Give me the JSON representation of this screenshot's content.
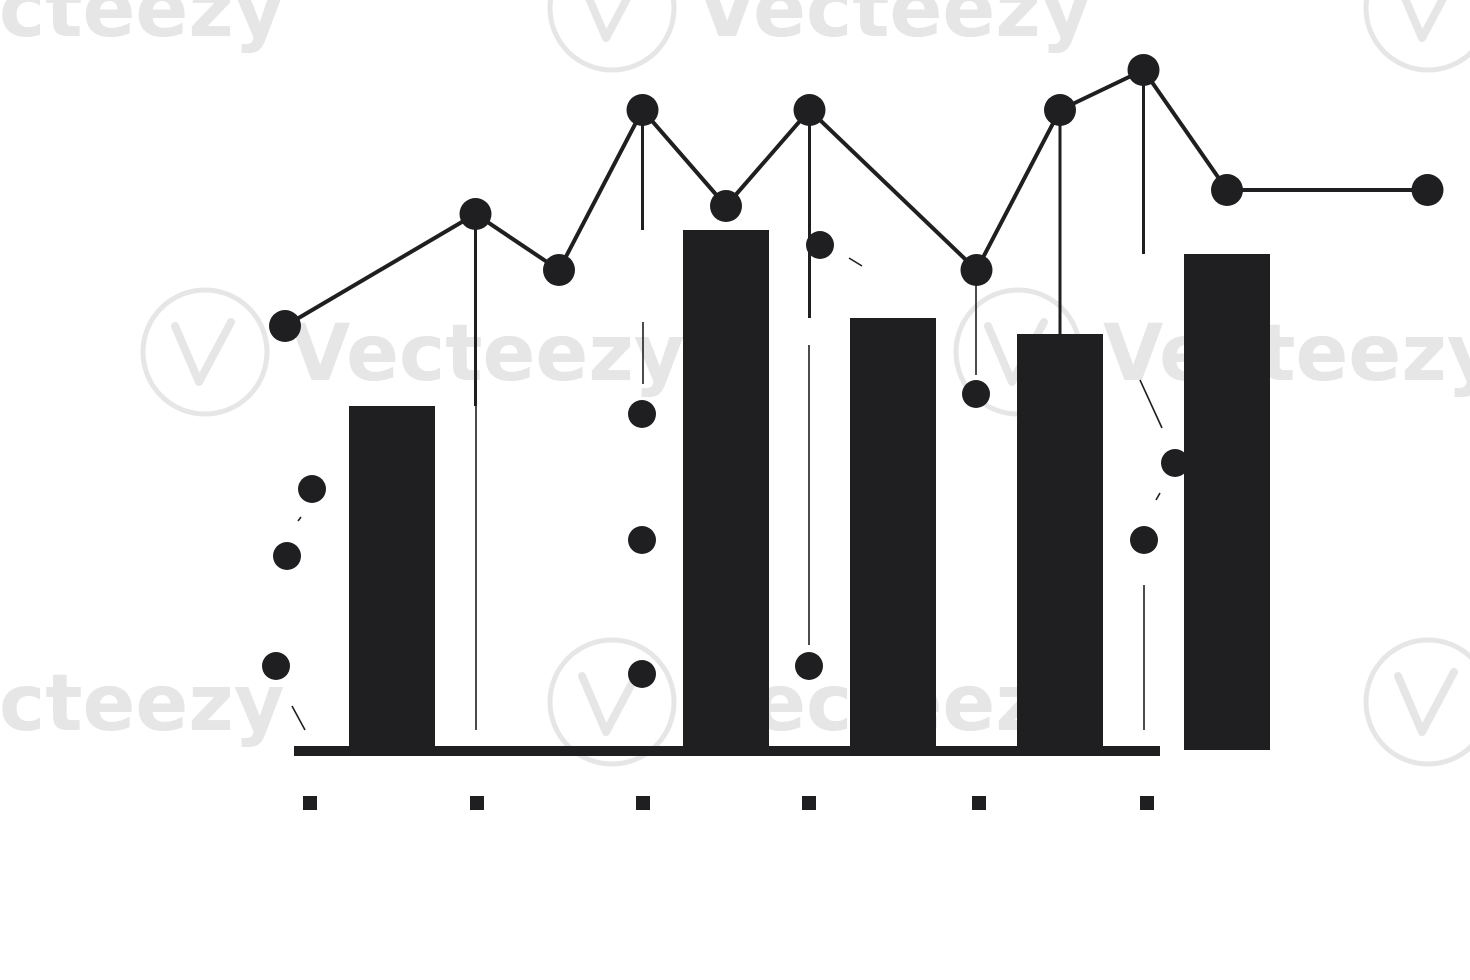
{
  "colors": {
    "ink": "#1f1f21",
    "background": "#ffffff",
    "watermark": "#e6e6e6"
  },
  "watermark": {
    "text": "Vecteezy",
    "icon": "vecteezy-logo-icon"
  },
  "chart_data": {
    "type": "bar",
    "title": "",
    "xlabel": "",
    "ylabel": "",
    "ylim": [
      0,
      10
    ],
    "grid": false,
    "legend": "none",
    "categories": [
      "",
      "",
      "",
      "",
      "",
      ""
    ],
    "series": [
      {
        "type": "bar",
        "values": [
          4.3,
          null,
          6.5,
          5.4,
          5.2,
          6.2
        ]
      },
      {
        "type": "line",
        "x": [
          0,
          0.5,
          1,
          1.5,
          2,
          2.5,
          3.5,
          4,
          4.5,
          5,
          5.5
        ],
        "values": [
          5.3,
          6.7,
          6.0,
          8.0,
          6.8,
          8.0,
          6.0,
          8.0,
          8.5,
          7.0,
          7.0
        ]
      }
    ]
  }
}
